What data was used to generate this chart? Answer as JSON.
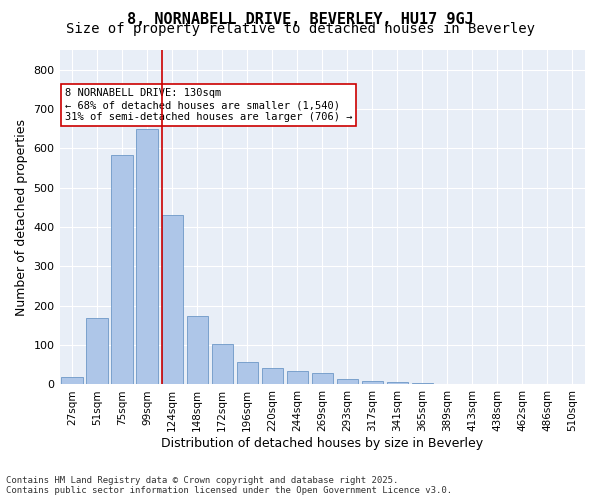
{
  "title": "8, NORNABELL DRIVE, BEVERLEY, HU17 9GJ",
  "subtitle": "Size of property relative to detached houses in Beverley",
  "xlabel": "Distribution of detached houses by size in Beverley",
  "ylabel": "Number of detached properties",
  "categories": [
    "27sqm",
    "51sqm",
    "75sqm",
    "99sqm",
    "124sqm",
    "148sqm",
    "172sqm",
    "196sqm",
    "220sqm",
    "244sqm",
    "269sqm",
    "293sqm",
    "317sqm",
    "341sqm",
    "365sqm",
    "389sqm",
    "413sqm",
    "438sqm",
    "462sqm",
    "486sqm",
    "510sqm"
  ],
  "values": [
    20,
    168,
    583,
    648,
    430,
    175,
    103,
    58,
    42,
    33,
    30,
    14,
    8,
    5,
    3,
    2,
    1,
    0,
    0,
    0,
    1
  ],
  "bar_color": "#aec6e8",
  "bar_edge_color": "#5a8abf",
  "vline_x": 3.575,
  "vline_color": "#cc0000",
  "annotation_box_text": "8 NORNABELL DRIVE: 130sqm\n← 68% of detached houses are smaller (1,540)\n31% of semi-detached houses are larger (706) →",
  "annotation_box_color": "#cc0000",
  "ylim": [
    0,
    850
  ],
  "yticks": [
    0,
    100,
    200,
    300,
    400,
    500,
    600,
    700,
    800
  ],
  "background_color": "#e8eef7",
  "footer_text": "Contains HM Land Registry data © Crown copyright and database right 2025.\nContains public sector information licensed under the Open Government Licence v3.0.",
  "title_fontsize": 11,
  "subtitle_fontsize": 10,
  "axis_fontsize": 9,
  "tick_fontsize": 7.5
}
